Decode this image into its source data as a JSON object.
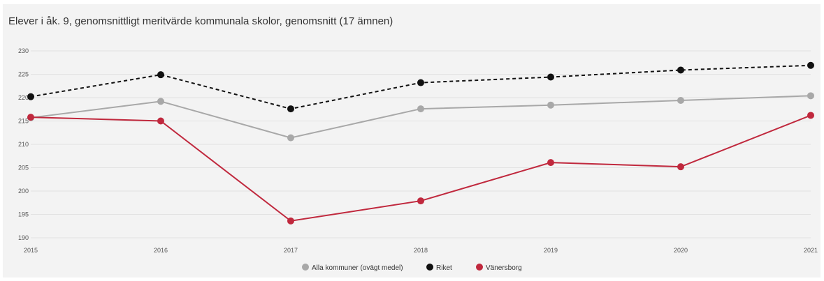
{
  "chart_data": {
    "type": "line",
    "title": "Elever i åk. 9, genomsnittligt meritvärde kommunala skolor, genomsnitt (17 ämnen)",
    "categories": [
      "2015",
      "2016",
      "2017",
      "2018",
      "2019",
      "2020",
      "2021"
    ],
    "ylim": [
      190,
      230
    ],
    "yticks": [
      "190",
      "195",
      "200",
      "205",
      "210",
      "215",
      "220",
      "225",
      "230"
    ],
    "grid": true,
    "legend_position": "bottom",
    "series": [
      {
        "name": "Alla kommuner (ovägt medel)",
        "color": "#a8a8a8",
        "dashed": false,
        "values": [
          215.7,
          219.2,
          211.4,
          217.6,
          218.4,
          219.4,
          220.4
        ]
      },
      {
        "name": "Riket",
        "color": "#111111",
        "dashed": true,
        "values": [
          220.2,
          224.9,
          217.6,
          223.2,
          224.4,
          225.9,
          226.9
        ]
      },
      {
        "name": "Vänersborg",
        "color": "#c0283d",
        "dashed": false,
        "values": [
          215.8,
          215.0,
          193.6,
          197.9,
          206.1,
          205.2,
          216.2
        ]
      }
    ]
  }
}
